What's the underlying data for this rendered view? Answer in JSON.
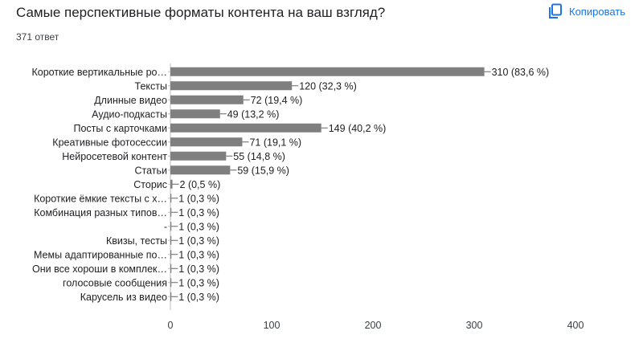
{
  "header": {
    "title": "Самые перспективные форматы контента на ваш взгляд?",
    "response_count": "371 ответ",
    "copy_label": "Копировать",
    "copy_icon": "copy-icon"
  },
  "colors": {
    "bar": "#7f7f7f",
    "accent": "#1a73e8",
    "axis": "#bdbdbd"
  },
  "chart_data": {
    "type": "bar",
    "orientation": "horizontal",
    "categories": [
      "Короткие вертикальные ро…",
      "Тексты",
      "Длинные видео",
      "Аудио-подкасты",
      "Посты с карточками",
      "Креативные фотосессии",
      "Нейросетевой контент",
      "Статьи",
      "Сторис",
      "Короткие ёмкие тексты с х…",
      "Комбинация разных типов…",
      "-",
      "Квизы, тесты",
      "Мемы адаптированные по…",
      "Они все хороши в комплек…",
      "голосовые сообщения",
      "Карусель из видео"
    ],
    "values": [
      310,
      120,
      72,
      49,
      149,
      71,
      55,
      59,
      2,
      1,
      1,
      1,
      1,
      1,
      1,
      1,
      1
    ],
    "data_labels": [
      "310 (83,6 %)",
      "120 (32,3 %)",
      "72 (19,4 %)",
      "49 (13,2 %)",
      "149 (40,2 %)",
      "71 (19,1 %)",
      "55 (14,8 %)",
      "59 (15,9 %)",
      "2 (0,5 %)",
      "1 (0,3 %)",
      "1 (0,3 %)",
      "1 (0,3 %)",
      "1 (0,3 %)",
      "1 (0,3 %)",
      "1 (0,3 %)",
      "1 (0,3 %)",
      "1 (0,3 %)"
    ],
    "xlim": [
      0,
      400
    ],
    "xticks": [
      0,
      100,
      200,
      300,
      400
    ],
    "xtick_labels": [
      "0",
      "100",
      "200",
      "300",
      "400"
    ],
    "grid": false,
    "legend": "none"
  }
}
